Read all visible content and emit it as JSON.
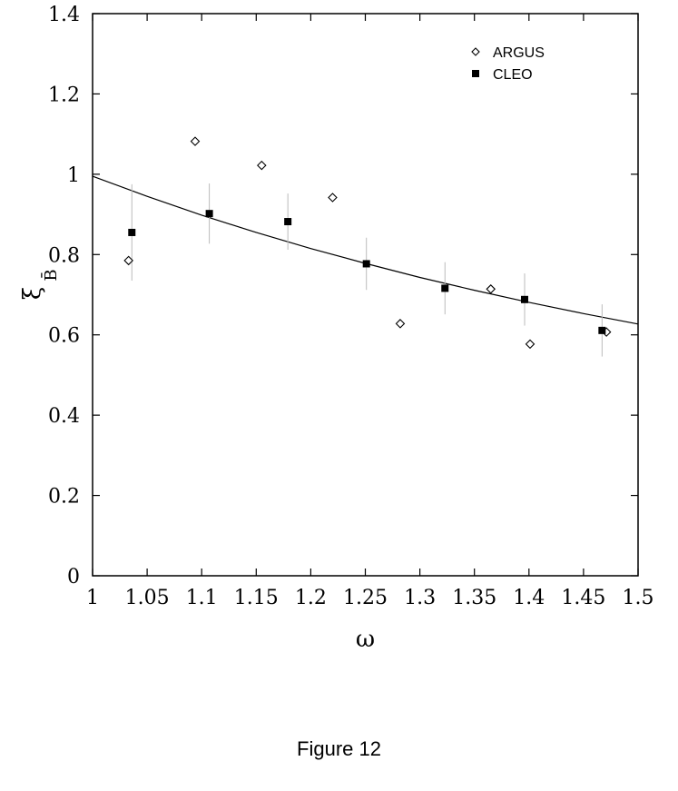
{
  "caption": "Figure 12",
  "chart_data": {
    "type": "scatter",
    "xlabel": "ω",
    "ylabel_main": "ξ",
    "ylabel_sub": "B̄",
    "xlim": [
      1,
      1.5
    ],
    "ylim": [
      0,
      1.4
    ],
    "x_ticks": [
      "1",
      "1.05",
      "1.1",
      "1.15",
      "1.2",
      "1.25",
      "1.3",
      "1.35",
      "1.4",
      "1.45",
      "1.5"
    ],
    "y_ticks": [
      "0",
      "0.2",
      "0.4",
      "0.6",
      "0.8",
      "1",
      "1.2",
      "1.4"
    ],
    "legend_position": "top-right",
    "series": [
      {
        "name": "ARGUS",
        "marker": "open-diamond",
        "x": [
          1.033,
          1.094,
          1.155,
          1.22,
          1.282,
          1.365,
          1.401,
          1.471
        ],
        "y": [
          0.785,
          1.082,
          1.022,
          0.942,
          0.628,
          0.714,
          0.577,
          0.607
        ]
      },
      {
        "name": "CLEO",
        "marker": "filled-square",
        "x": [
          1.036,
          1.107,
          1.179,
          1.251,
          1.323,
          1.396,
          1.467
        ],
        "y": [
          0.855,
          0.902,
          0.882,
          0.777,
          0.716,
          0.688,
          0.611
        ],
        "error": [
          0.12,
          0.075,
          0.07,
          0.065,
          0.065,
          0.065,
          0.065
        ]
      }
    ],
    "curve": {
      "description": "fit",
      "x": [
        1.0,
        1.05,
        1.1,
        1.15,
        1.2,
        1.25,
        1.3,
        1.35,
        1.4,
        1.45,
        1.5
      ],
      "y": [
        0.995,
        0.945,
        0.898,
        0.855,
        0.815,
        0.778,
        0.743,
        0.711,
        0.681,
        0.653,
        0.627
      ]
    }
  }
}
